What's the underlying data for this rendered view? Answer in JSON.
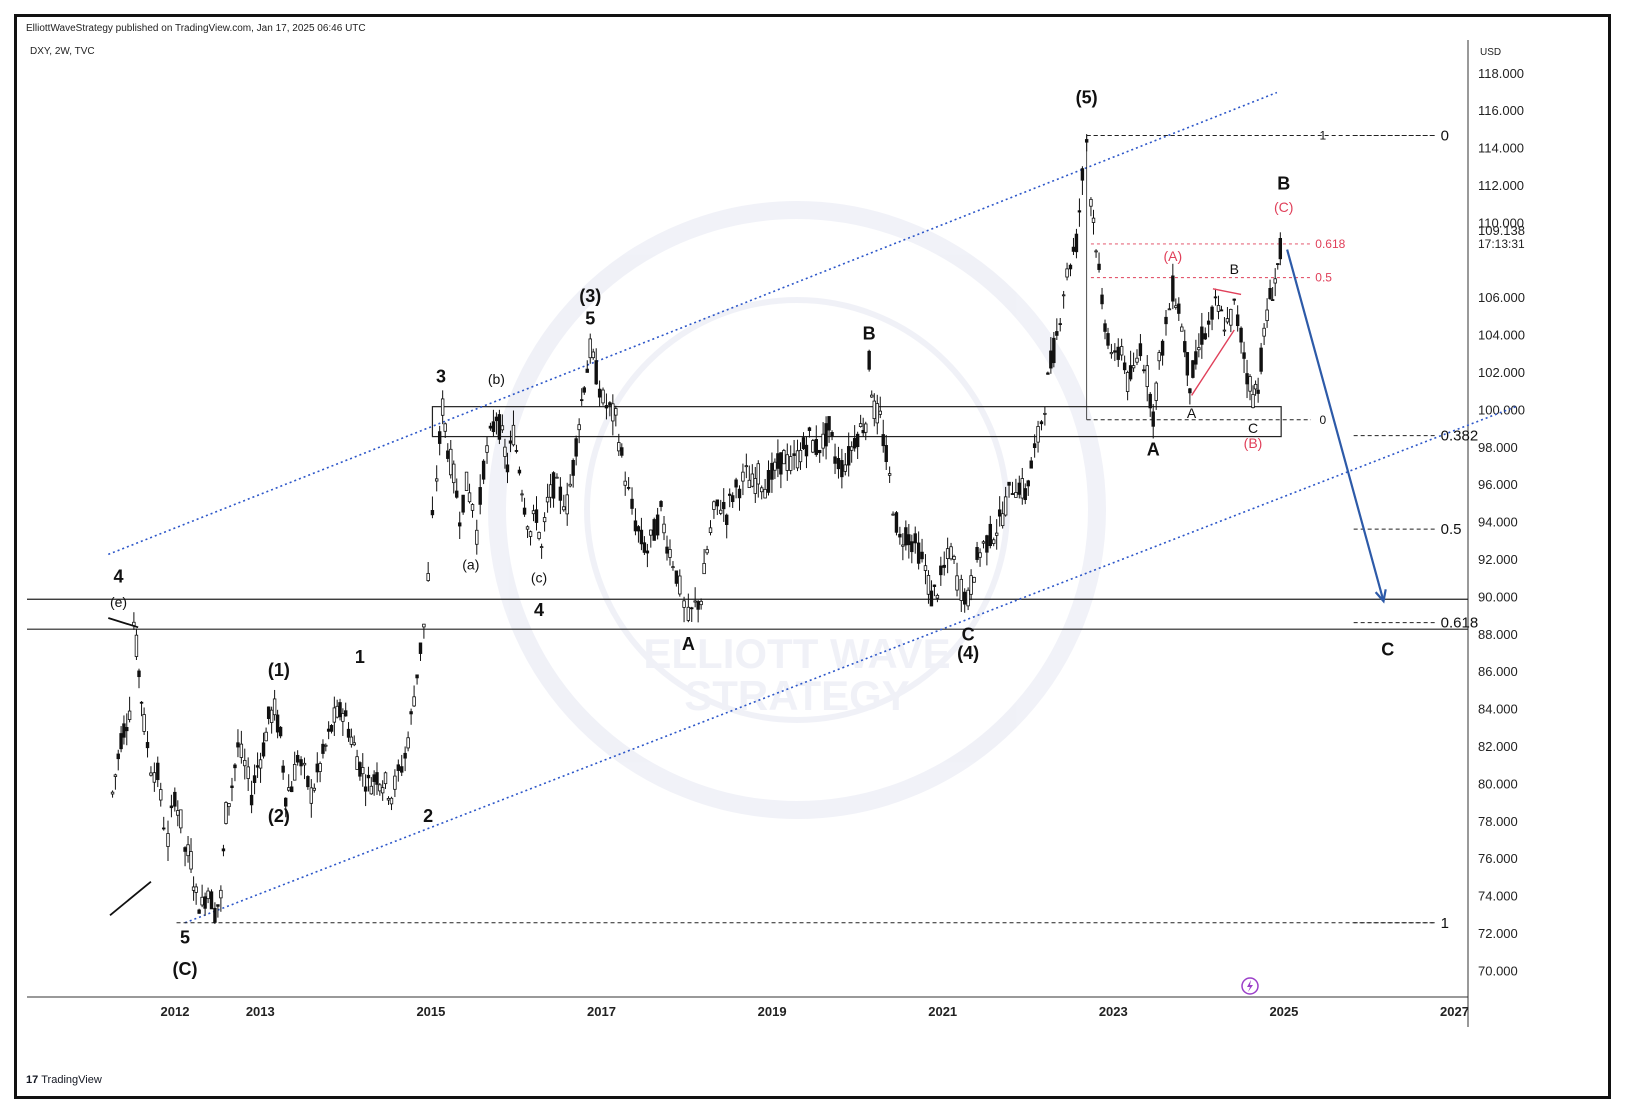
{
  "header": {
    "published": "ElliottWaveStrategy published on TradingView.com, Jan 17, 2025 06:46 UTC",
    "symbol": "DXY, 2W, TVC"
  },
  "footer": {
    "brand": "TradingView"
  },
  "watermark": {
    "line1": "ELLIOTT WAVE",
    "line2": "STRATEGY"
  },
  "colors": {
    "candle": "#111111",
    "channel": "#2d57c9",
    "fib_red": "#e0405a",
    "projection_arrow": "#2d5aa8",
    "label_black": "#111111",
    "axis_text": "#222222"
  },
  "chart_data": {
    "type": "candlestick",
    "symbol": "DXY",
    "timeframe": "2W",
    "currency": "USD",
    "y_axis_label": "USD",
    "ylim": [
      68.0,
      120.0
    ],
    "xlim": [
      2011.3,
      2027.8
    ],
    "x_ticks": [
      "2012",
      "2013",
      "2015",
      "2017",
      "2019",
      "2021",
      "2023",
      "2025",
      "2027"
    ],
    "y_ticks": [
      "118.000",
      "116.000",
      "114.000",
      "112.000",
      "110.000",
      "106.000",
      "104.000",
      "102.000",
      "100.000",
      "98.000",
      "96.000",
      "94.000",
      "92.000",
      "90.000",
      "88.000",
      "86.000",
      "84.000",
      "82.000",
      "80.000",
      "78.000",
      "76.000",
      "74.000",
      "72.000",
      "70.000"
    ],
    "last_price": "109.138",
    "countdown": "17:13:31",
    "price_path": [
      [
        2011.35,
        79.5
      ],
      [
        2011.45,
        82.5
      ],
      [
        2011.55,
        84.0
      ],
      [
        2011.6,
        88.6
      ],
      [
        2011.66,
        86.0
      ],
      [
        2011.72,
        83.2
      ],
      [
        2011.8,
        81.0
      ],
      [
        2011.88,
        80.5
      ],
      [
        2011.95,
        78.0
      ],
      [
        2012.0,
        77.0
      ],
      [
        2012.08,
        79.5
      ],
      [
        2012.15,
        78.0
      ],
      [
        2012.2,
        76.5
      ],
      [
        2012.27,
        76.0
      ],
      [
        2012.33,
        74.0
      ],
      [
        2012.4,
        73.5
      ],
      [
        2012.47,
        74.5
      ],
      [
        2012.55,
        73.2
      ],
      [
        2012.62,
        74.0
      ],
      [
        2012.68,
        78.5
      ],
      [
        2012.75,
        80.0
      ],
      [
        2012.82,
        82.0
      ],
      [
        2012.9,
        81.0
      ],
      [
        2012.98,
        79.5
      ],
      [
        2013.05,
        81.0
      ],
      [
        2013.12,
        82.0
      ],
      [
        2013.18,
        83.5
      ],
      [
        2013.25,
        84.0
      ],
      [
        2013.32,
        82.5
      ],
      [
        2013.38,
        79.5
      ],
      [
        2013.45,
        80.0
      ],
      [
        2013.52,
        81.5
      ],
      [
        2013.6,
        80.5
      ],
      [
        2013.68,
        79.5
      ],
      [
        2013.75,
        80.5
      ],
      [
        2013.85,
        82.0
      ],
      [
        2013.95,
        83.5
      ],
      [
        2014.05,
        84.0
      ],
      [
        2014.15,
        82.5
      ],
      [
        2014.25,
        81.0
      ],
      [
        2014.35,
        80.0
      ],
      [
        2014.45,
        80.5
      ],
      [
        2014.55,
        80.0
      ],
      [
        2014.62,
        79.5
      ],
      [
        2014.7,
        80.5
      ],
      [
        2014.78,
        81.5
      ],
      [
        2014.85,
        83.5
      ],
      [
        2014.92,
        86.0
      ],
      [
        2015.0,
        88.5
      ],
      [
        2015.05,
        91.0
      ],
      [
        2015.1,
        94.0
      ],
      [
        2015.15,
        96.5
      ],
      [
        2015.22,
        100.2
      ],
      [
        2015.28,
        98.0
      ],
      [
        2015.35,
        96.5
      ],
      [
        2015.42,
        94.5
      ],
      [
        2015.5,
        96.0
      ],
      [
        2015.57,
        95.0
      ],
      [
        2015.62,
        93.5
      ],
      [
        2015.7,
        97.0
      ],
      [
        2015.78,
        98.5
      ],
      [
        2015.85,
        99.8
      ],
      [
        2015.92,
        98.5
      ],
      [
        2015.98,
        97.0
      ],
      [
        2016.05,
        98.8
      ],
      [
        2016.12,
        97.0
      ],
      [
        2016.18,
        95.0
      ],
      [
        2016.25,
        93.5
      ],
      [
        2016.32,
        94.5
      ],
      [
        2016.38,
        92.5
      ],
      [
        2016.45,
        95.0
      ],
      [
        2016.52,
        96.0
      ],
      [
        2016.6,
        95.5
      ],
      [
        2016.68,
        95.0
      ],
      [
        2016.75,
        97.0
      ],
      [
        2016.82,
        99.5
      ],
      [
        2016.88,
        101.5
      ],
      [
        2016.95,
        103.2
      ],
      [
        2017.02,
        102.0
      ],
      [
        2017.1,
        100.5
      ],
      [
        2017.18,
        100.0
      ],
      [
        2017.25,
        99.5
      ],
      [
        2017.32,
        97.5
      ],
      [
        2017.4,
        95.5
      ],
      [
        2017.48,
        94.0
      ],
      [
        2017.55,
        93.0
      ],
      [
        2017.62,
        92.5
      ],
      [
        2017.7,
        93.5
      ],
      [
        2017.78,
        94.5
      ],
      [
        2017.85,
        93.0
      ],
      [
        2017.92,
        92.0
      ],
      [
        2018.0,
        90.5
      ],
      [
        2018.05,
        89.5
      ],
      [
        2018.1,
        88.8
      ],
      [
        2018.18,
        89.5
      ],
      [
        2018.25,
        90.0
      ],
      [
        2018.32,
        92.5
      ],
      [
        2018.4,
        94.5
      ],
      [
        2018.48,
        95.0
      ],
      [
        2018.55,
        94.5
      ],
      [
        2018.62,
        95.5
      ],
      [
        2018.7,
        96.0
      ],
      [
        2018.78,
        96.5
      ],
      [
        2018.85,
        96.0
      ],
      [
        2018.92,
        96.5
      ],
      [
        2019.0,
        96.0
      ],
      [
        2019.08,
        96.5
      ],
      [
        2019.15,
        97.0
      ],
      [
        2019.22,
        97.5
      ],
      [
        2019.3,
        97.0
      ],
      [
        2019.38,
        97.5
      ],
      [
        2019.45,
        98.0
      ],
      [
        2019.52,
        98.5
      ],
      [
        2019.6,
        98.0
      ],
      [
        2019.68,
        98.3
      ],
      [
        2019.75,
        99.0
      ],
      [
        2019.82,
        97.5
      ],
      [
        2019.9,
        97.0
      ],
      [
        2019.98,
        97.5
      ],
      [
        2020.05,
        98.5
      ],
      [
        2020.12,
        99.0
      ],
      [
        2020.18,
        99.5
      ],
      [
        2020.22,
        102.5
      ],
      [
        2020.28,
        100.0
      ],
      [
        2020.35,
        99.5
      ],
      [
        2020.42,
        97.5
      ],
      [
        2020.5,
        95.0
      ],
      [
        2020.58,
        93.0
      ],
      [
        2020.65,
        93.5
      ],
      [
        2020.72,
        93.0
      ],
      [
        2020.8,
        92.5
      ],
      [
        2020.88,
        91.5
      ],
      [
        2020.95,
        90.0
      ],
      [
        2021.02,
        90.5
      ],
      [
        2021.1,
        91.5
      ],
      [
        2021.18,
        92.5
      ],
      [
        2021.25,
        91.0
      ],
      [
        2021.3,
        90.5
      ],
      [
        2021.38,
        89.8
      ],
      [
        2021.45,
        91.5
      ],
      [
        2021.52,
        92.5
      ],
      [
        2021.6,
        93.0
      ],
      [
        2021.68,
        93.5
      ],
      [
        2021.75,
        94.0
      ],
      [
        2021.82,
        95.0
      ],
      [
        2021.9,
        96.0
      ],
      [
        2021.98,
        96.0
      ],
      [
        2022.05,
        95.5
      ],
      [
        2022.12,
        97.0
      ],
      [
        2022.2,
        98.5
      ],
      [
        2022.28,
        100.5
      ],
      [
        2022.35,
        102.5
      ],
      [
        2022.42,
        104.0
      ],
      [
        2022.5,
        106.5
      ],
      [
        2022.58,
        108.0
      ],
      [
        2022.65,
        109.0
      ],
      [
        2022.72,
        112.5
      ],
      [
        2022.77,
        114.5
      ],
      [
        2022.82,
        111.5
      ],
      [
        2022.88,
        109.0
      ],
      [
        2022.95,
        105.5
      ],
      [
        2023.02,
        104.0
      ],
      [
        2023.1,
        102.5
      ],
      [
        2023.18,
        103.5
      ],
      [
        2023.25,
        101.5
      ],
      [
        2023.32,
        102.0
      ],
      [
        2023.4,
        103.5
      ],
      [
        2023.48,
        101.8
      ],
      [
        2023.55,
        99.8
      ],
      [
        2023.62,
        102.5
      ],
      [
        2023.7,
        104.5
      ],
      [
        2023.78,
        106.5
      ],
      [
        2023.85,
        105.5
      ],
      [
        2023.92,
        103.5
      ],
      [
        2023.98,
        101.5
      ],
      [
        2024.05,
        102.5
      ],
      [
        2024.12,
        104.0
      ],
      [
        2024.2,
        104.5
      ],
      [
        2024.28,
        105.5
      ],
      [
        2024.35,
        105.0
      ],
      [
        2024.42,
        104.5
      ],
      [
        2024.5,
        105.5
      ],
      [
        2024.58,
        104.0
      ],
      [
        2024.65,
        102.0
      ],
      [
        2024.72,
        100.8
      ],
      [
        2024.78,
        101.5
      ],
      [
        2024.85,
        104.0
      ],
      [
        2024.92,
        106.0
      ],
      [
        2024.98,
        107.0
      ],
      [
        2025.04,
        108.5
      ],
      [
        2025.08,
        109.1
      ]
    ],
    "levels": {
      "top_fib_prices": [
        114.7,
        72.6
      ],
      "top_fib_labels": [
        "0",
        "0.382",
        "0.5",
        "0.618",
        "1"
      ],
      "top_fib_values": [
        114.7,
        98.65,
        93.65,
        88.65,
        72.6
      ],
      "inner_fib": [
        {
          "label": "1",
          "price": 114.7
        },
        {
          "label": "0",
          "price": 99.5
        }
      ],
      "red_fib": [
        {
          "label": "0.618",
          "price": 108.9
        },
        {
          "label": "0.5",
          "price": 107.1
        }
      ],
      "zone_upper": [
        98.6,
        100.2
      ],
      "zone_lower": [
        88.3,
        89.9
      ]
    },
    "channel": {
      "upper": [
        [
          2011.3,
          92.3
        ],
        [
          2025.0,
          117.0
        ]
      ],
      "lower": [
        [
          2012.2,
          72.6
        ],
        [
          2027.8,
          100.2
        ]
      ]
    },
    "projection": {
      "from": [
        2025.12,
        108.6
      ],
      "to": [
        2026.25,
        89.8
      ],
      "target_label": "C"
    },
    "wave_labels": [
      {
        "text": "4",
        "x": 2011.42,
        "y": 90.8,
        "bold": true
      },
      {
        "text": "(e)",
        "x": 2011.42,
        "y": 89.5,
        "bold": false
      },
      {
        "text": "5",
        "x": 2012.2,
        "y": 71.5,
        "bold": true
      },
      {
        "text": "(C)",
        "x": 2012.2,
        "y": 69.8,
        "bold": true
      },
      {
        "text": "(1)",
        "x": 2013.3,
        "y": 85.8,
        "bold": true
      },
      {
        "text": "(2)",
        "x": 2013.3,
        "y": 78.0,
        "bold": true
      },
      {
        "text": "1",
        "x": 2014.25,
        "y": 86.5,
        "bold": true
      },
      {
        "text": "2",
        "x": 2015.05,
        "y": 78.0,
        "bold": true
      },
      {
        "text": "3",
        "x": 2015.2,
        "y": 101.5,
        "bold": true
      },
      {
        "text": "(a)",
        "x": 2015.55,
        "y": 91.5,
        "bold": false
      },
      {
        "text": "(b)",
        "x": 2015.85,
        "y": 101.4,
        "bold": false
      },
      {
        "text": "(c)",
        "x": 2016.35,
        "y": 90.8,
        "bold": false
      },
      {
        "text": "4",
        "x": 2016.35,
        "y": 89.0,
        "bold": true
      },
      {
        "text": "(3)",
        "x": 2016.95,
        "y": 105.8,
        "bold": true
      },
      {
        "text": "5",
        "x": 2016.95,
        "y": 104.6,
        "bold": true
      },
      {
        "text": "A",
        "x": 2018.1,
        "y": 87.2,
        "bold": true
      },
      {
        "text": "B",
        "x": 2020.22,
        "y": 103.8,
        "bold": true
      },
      {
        "text": "C",
        "x": 2021.38,
        "y": 87.7,
        "bold": true
      },
      {
        "text": "(4)",
        "x": 2021.38,
        "y": 86.7,
        "bold": true
      },
      {
        "text": "(5)",
        "x": 2022.77,
        "y": 116.4,
        "bold": true
      },
      {
        "text": "A",
        "x": 2023.55,
        "y": 97.6,
        "bold": true
      },
      {
        "text": "A",
        "x": 2024.0,
        "y": 99.6,
        "bold": false
      },
      {
        "text": "B",
        "x": 2024.5,
        "y": 107.3,
        "bold": false
      },
      {
        "text": "C",
        "x": 2024.72,
        "y": 98.8,
        "bold": false
      },
      {
        "text": "B",
        "x": 2025.08,
        "y": 111.8,
        "bold": true
      },
      {
        "text": "C",
        "x": 2026.3,
        "y": 86.9,
        "bold": true
      }
    ],
    "red_labels": [
      {
        "text": "(A)",
        "x": 2023.78,
        "y": 108.0
      },
      {
        "text": "(B)",
        "x": 2024.72,
        "y": 98.0
      },
      {
        "text": "(C)",
        "x": 2025.08,
        "y": 110.6
      }
    ]
  }
}
